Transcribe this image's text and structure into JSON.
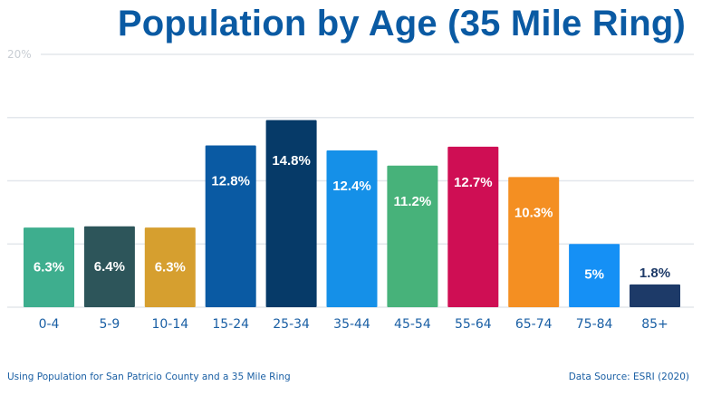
{
  "chart_data": {
    "type": "bar",
    "title": "Population by Age (35 Mile Ring)",
    "xlabel": "",
    "ylabel": "",
    "ylim": [
      0,
      20
    ],
    "yticks": [
      0,
      5,
      10,
      15,
      20
    ],
    "ytick_labels_shown": [
      "20%"
    ],
    "grid": true,
    "legend": "none",
    "categories": [
      "0-4",
      "5-9",
      "10-14",
      "15-24",
      "25-34",
      "35-44",
      "45-54",
      "55-64",
      "65-74",
      "75-84",
      "85+"
    ],
    "values": [
      6.3,
      6.4,
      6.3,
      12.8,
      14.8,
      12.4,
      11.2,
      12.7,
      10.3,
      5,
      1.8
    ],
    "data_labels": [
      "6.3%",
      "6.4%",
      "6.3%",
      "12.8%",
      "14.8%",
      "12.4%",
      "11.2%",
      "12.7%",
      "10.3%",
      "5%",
      "1.8%"
    ],
    "colors": [
      "#3eae8e",
      "#2d555a",
      "#d69f2f",
      "#0a5aa3",
      "#063a68",
      "#1590e8",
      "#47b27a",
      "#cf0e54",
      "#f48f22",
      "#1590f5",
      "#1d3a68"
    ]
  },
  "footer": {
    "note": "Using Population for San Patricio County and a 35 Mile Ring",
    "source": "Data Source: ESRI (2020)"
  },
  "colors": {
    "title": "#0a5aa3",
    "axis_text": "#1a5fa4",
    "grid": "#e3e7ec",
    "ytick_text": "#c9ced4",
    "label_dark": "#1d3a68"
  }
}
